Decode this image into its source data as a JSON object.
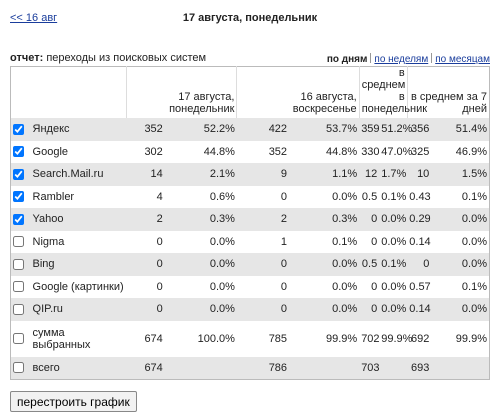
{
  "nav": {
    "prev": "<< 16 авг",
    "title": "17 августа, понедельник"
  },
  "report": {
    "label": "отчет:",
    "name": "переходы из поисковых систем",
    "periods": [
      {
        "text": "по дням",
        "active": true
      },
      {
        "text": "по неделям",
        "active": false
      },
      {
        "text": "по месяцам",
        "active": false
      }
    ]
  },
  "table": {
    "headers": [
      "17 августа, понедельник",
      "16 августа, воскресенье",
      "в среднем в понедельник",
      "в среднем за 7 дней"
    ],
    "rows": [
      {
        "name": "Яндекс",
        "checked": true,
        "cells": [
          "352",
          "52.2%",
          "422",
          "53.7%",
          "359",
          "51.2%",
          "356",
          "51.4%"
        ]
      },
      {
        "name": "Google",
        "checked": true,
        "cells": [
          "302",
          "44.8%",
          "352",
          "44.8%",
          "330",
          "47.0%",
          "325",
          "46.9%"
        ]
      },
      {
        "name": "Search.Mail.ru",
        "checked": true,
        "cells": [
          "14",
          "2.1%",
          "9",
          "1.1%",
          "12",
          "1.7%",
          "10",
          "1.5%"
        ]
      },
      {
        "name": "Rambler",
        "checked": true,
        "cells": [
          "4",
          "0.6%",
          "0",
          "0.0%",
          "0.5",
          "0.1%",
          "0.43",
          "0.1%"
        ]
      },
      {
        "name": "Yahoo",
        "checked": true,
        "cells": [
          "2",
          "0.3%",
          "2",
          "0.3%",
          "0",
          "0.0%",
          "0.29",
          "0.0%"
        ]
      },
      {
        "name": "Nigma",
        "checked": false,
        "cells": [
          "0",
          "0.0%",
          "1",
          "0.1%",
          "0",
          "0.0%",
          "0.14",
          "0.0%"
        ]
      },
      {
        "name": "Bing",
        "checked": false,
        "cells": [
          "0",
          "0.0%",
          "0",
          "0.0%",
          "0.5",
          "0.1%",
          "0",
          "0.0%"
        ]
      },
      {
        "name": "Google (картинки)",
        "checked": false,
        "cells": [
          "0",
          "0.0%",
          "0",
          "0.0%",
          "0",
          "0.0%",
          "0.57",
          "0.1%"
        ]
      },
      {
        "name": "QIP.ru",
        "checked": false,
        "cells": [
          "0",
          "0.0%",
          "0",
          "0.0%",
          "0",
          "0.0%",
          "0.14",
          "0.0%"
        ]
      },
      {
        "name": "сумма выбранных",
        "checked": false,
        "cells": [
          "674",
          "100.0%",
          "785",
          "99.9%",
          "702",
          "99.9%",
          "692",
          "99.9%"
        ]
      },
      {
        "name": "всего",
        "checked": false,
        "cells": [
          "674",
          null,
          "786",
          null,
          "703",
          null,
          "693",
          null
        ]
      }
    ]
  },
  "button": "перестроить график"
}
